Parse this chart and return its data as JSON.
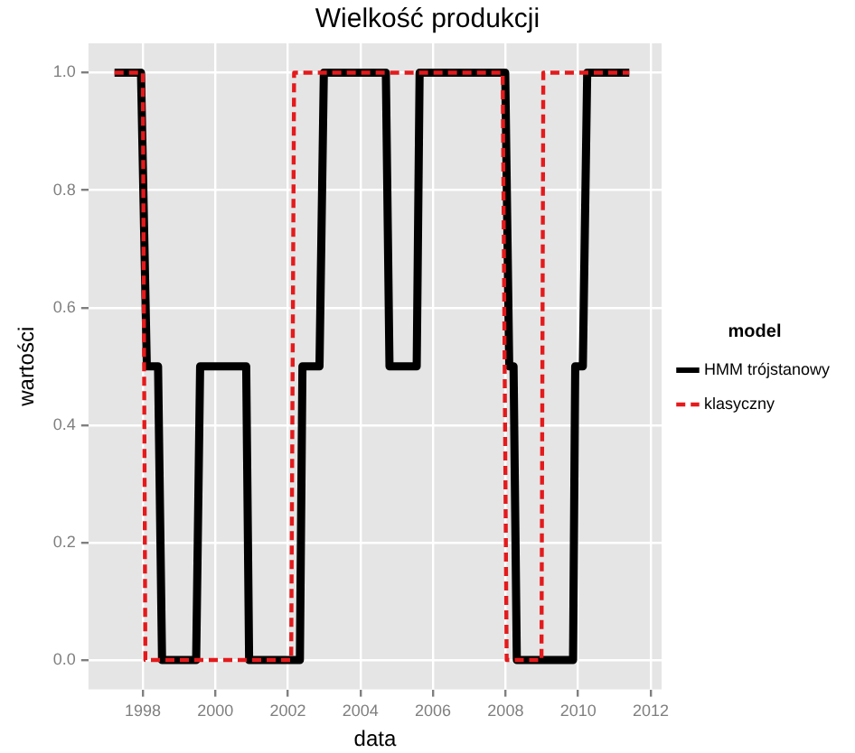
{
  "chart_data": {
    "type": "line",
    "title": "Wielkość produkcji",
    "xlabel": "data",
    "ylabel": "wartości",
    "legend_title": "model",
    "legend": "right",
    "grid": true,
    "marker": "none",
    "xlim": [
      1996.5,
      2012.3
    ],
    "xticks": [
      1998,
      2000,
      2002,
      2004,
      2006,
      2008,
      2010,
      2012
    ],
    "ylim": [
      -0.05,
      1.05
    ],
    "yticks": [
      {
        "value": 0,
        "label": "0.0"
      },
      {
        "value": 0.2,
        "label": "0.2"
      },
      {
        "value": 0.4,
        "label": "0.4"
      },
      {
        "value": 0.6,
        "label": "0.6"
      },
      {
        "value": 0.8,
        "label": "0.8"
      },
      {
        "value": 1,
        "label": "1.0"
      }
    ],
    "series": [
      {
        "name": "HMM trójstanowy",
        "color": "#000000",
        "line_style": "solid",
        "x": [
          1997.22,
          1997.95,
          1998.11,
          1998.42,
          1998.53,
          1999.47,
          1999.58,
          2000.85,
          2000.93,
          2002.33,
          2002.4,
          2002.87,
          2002.99,
          2004.7,
          2004.8,
          2005.55,
          2005.63,
          2007.99,
          2008.1,
          2008.22,
          2008.31,
          2009.86,
          2009.92,
          2010.13,
          2010.25,
          2011.41
        ],
        "values": [
          1,
          1,
          0.5,
          0.5,
          0,
          0,
          0.5,
          0.5,
          0,
          0,
          0.5,
          0.5,
          1,
          1,
          0.5,
          0.5,
          1,
          1,
          0.5,
          0.5,
          0,
          0,
          0.5,
          0.5,
          1,
          1
        ]
      },
      {
        "name": "klasyczny",
        "color": "#e41a1c",
        "line_style": "dashed",
        "x": [
          1997.22,
          1998.0,
          1998.07,
          2002.09,
          2002.17,
          2007.92,
          2008.03,
          2008.99,
          2009.04,
          2011.41
        ],
        "values": [
          1,
          1,
          0,
          0,
          1,
          1,
          0,
          0,
          1,
          1
        ]
      }
    ]
  }
}
